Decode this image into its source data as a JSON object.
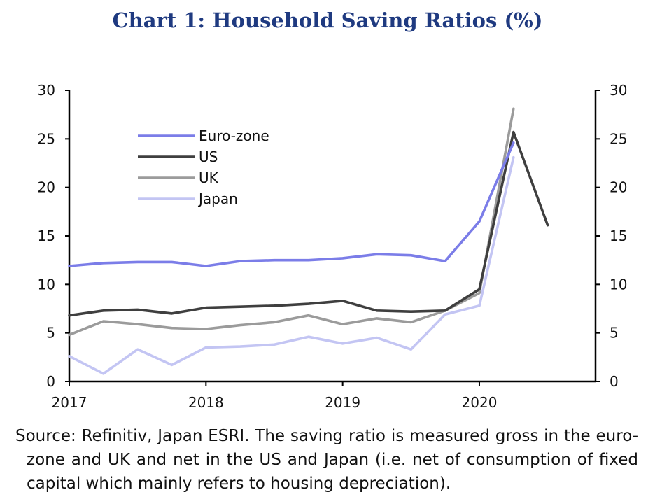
{
  "chart_data": {
    "type": "line",
    "title": "Chart 1: Household Saving Ratios (%)",
    "ylim": [
      0,
      30
    ],
    "yticks": [
      0,
      5,
      10,
      15,
      20,
      25,
      30
    ],
    "y_tick_labels": [
      "0",
      "5",
      "10",
      "15",
      "20",
      "25",
      "30"
    ],
    "secondary_y_tick_labels": [
      "0",
      "5",
      "10",
      "15",
      "20",
      "25",
      "30"
    ],
    "xlim": [
      2017.0,
      2020.85
    ],
    "xticks": [
      2017,
      2018,
      2019,
      2020
    ],
    "x_tick_labels": [
      "2017",
      "2018",
      "2019",
      "2020"
    ],
    "legend_placement": "top-left",
    "series": [
      {
        "name": "Euro-zone",
        "color": "#7b7de8",
        "x": [
          2017.0,
          2017.25,
          2017.5,
          2017.75,
          2018.0,
          2018.25,
          2018.5,
          2018.75,
          2019.0,
          2019.25,
          2019.5,
          2019.75,
          2020.0,
          2020.25
        ],
        "values": [
          11.9,
          12.2,
          12.3,
          12.3,
          11.9,
          12.4,
          12.5,
          12.5,
          12.7,
          13.1,
          13.0,
          12.4,
          16.5,
          24.6
        ]
      },
      {
        "name": "US",
        "color": "#3f3f3f",
        "x": [
          2017.0,
          2017.25,
          2017.5,
          2017.75,
          2018.0,
          2018.25,
          2018.5,
          2018.75,
          2019.0,
          2019.25,
          2019.5,
          2019.75,
          2020.0,
          2020.25,
          2020.5
        ],
        "values": [
          6.8,
          7.3,
          7.4,
          7.0,
          7.6,
          7.7,
          7.8,
          8.0,
          8.3,
          7.3,
          7.2,
          7.3,
          9.5,
          25.7,
          16.1
        ]
      },
      {
        "name": "UK",
        "color": "#9b9b9b",
        "x": [
          2017.0,
          2017.25,
          2017.5,
          2017.75,
          2018.0,
          2018.25,
          2018.5,
          2018.75,
          2019.0,
          2019.25,
          2019.5,
          2019.75,
          2020.0,
          2020.25
        ],
        "values": [
          4.8,
          6.2,
          5.9,
          5.5,
          5.4,
          5.8,
          6.1,
          6.8,
          5.9,
          6.5,
          6.1,
          7.3,
          9.1,
          28.1
        ]
      },
      {
        "name": "Japan",
        "color": "#c3c5f3",
        "x": [
          2017.0,
          2017.25,
          2017.5,
          2017.75,
          2018.0,
          2018.25,
          2018.5,
          2018.75,
          2019.0,
          2019.25,
          2019.5,
          2019.75,
          2020.0,
          2020.25
        ],
        "values": [
          2.6,
          0.8,
          3.3,
          1.7,
          3.5,
          3.6,
          3.8,
          4.6,
          3.9,
          4.5,
          3.3,
          6.9,
          7.8,
          23.1
        ]
      }
    ]
  },
  "source_note": "Source: Refinitiv, Japan ESRI. The saving ratio is measured gross in the euro-zone and UK and net in the US and Japan (i.e. net of consumption of fixed capital which mainly refers to housing depreciation)."
}
